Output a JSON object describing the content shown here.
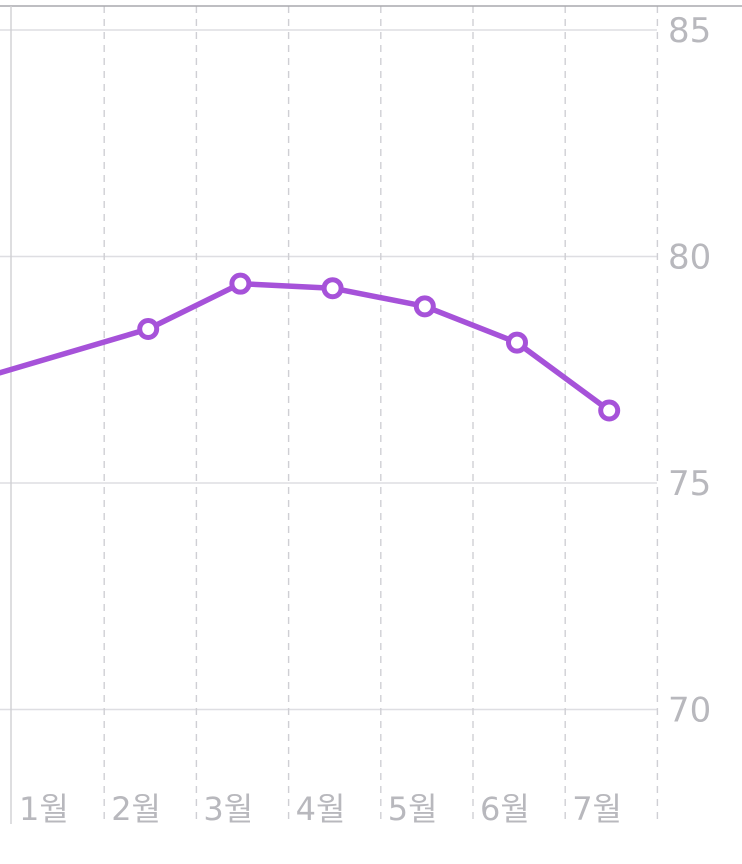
{
  "chart_data": {
    "type": "line",
    "title": "",
    "xlabel": "",
    "ylabel": "",
    "categories": [
      "1월",
      "2월",
      "3월",
      "4월",
      "5월",
      "6월",
      "7월"
    ],
    "series": [
      {
        "values": [
          77.8,
          78.4,
          79.4,
          79.3,
          78.9,
          78.1,
          76.6
        ],
        "color": "#a652d9"
      }
    ],
    "ylim": [
      68,
      85.5
    ],
    "y_ticks": [
      70,
      75,
      80,
      85
    ],
    "grid": true,
    "y_axis_position": "right",
    "line_continues_left_edge": true
  }
}
